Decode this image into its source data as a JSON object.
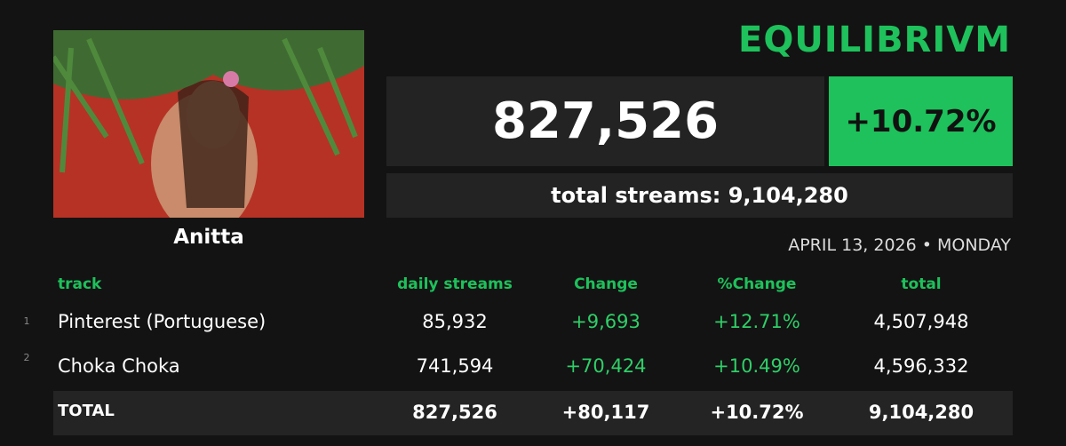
{
  "header": {
    "title": "EQUILIBRIVM",
    "artist": "Anitta",
    "daily_streams": "827,526",
    "change_pct": "+10.72%",
    "total_streams": "total streams: 9,104,280",
    "date": "APRIL 13, 2026 • MONDAY"
  },
  "table": {
    "columns": [
      "track",
      "daily streams",
      "Change",
      "%Change",
      "total"
    ],
    "rows": [
      {
        "rank": "1",
        "cells": [
          "Pinterest (Portuguese)",
          "85,932",
          "+9,693",
          "+12.71%",
          "4,507,948"
        ]
      },
      {
        "rank": "2",
        "cells": [
          "Choka Choka",
          "741,594",
          "+70,424",
          "+10.49%",
          "4,596,332"
        ]
      }
    ],
    "total_row": [
      "TOTAL",
      "827,526",
      "+80,117",
      "+10.72%",
      "9,104,280"
    ]
  }
}
